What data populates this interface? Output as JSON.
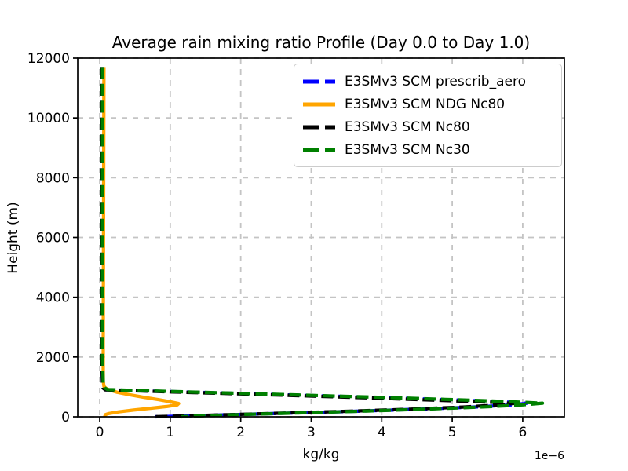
{
  "figure": {
    "title": "Average rain mixing ratio Profile (Day 0.0 to Day 1.0)",
    "xlabel": "kg/kg",
    "ylabel": "Height (m)",
    "x_offset_label": "1e−6"
  },
  "chart_data": {
    "type": "line",
    "title": "Average rain mixing ratio Profile (Day 0.0 to Day 1.0)",
    "xlabel": "kg/kg",
    "ylabel": "Height (m)",
    "x_unit_scale": "1e-6",
    "xlim": [
      -0.312,
      6.591
    ],
    "ylim": [
      0,
      12000
    ],
    "xticks": [
      0,
      1,
      2,
      3,
      4,
      5,
      6
    ],
    "yticks": [
      0,
      2000,
      4000,
      6000,
      8000,
      10000,
      12000
    ],
    "grid": true,
    "grid_color": "#c4c4c4",
    "legend_position": "upper right",
    "series": [
      {
        "name": "E3SMv3 SCM prescrib_aero",
        "color": "#0000ff",
        "linestyle": "dashed",
        "linewidth": 4.2,
        "points_x_1e-6_y_m": [
          [
            0.03,
            11700
          ],
          [
            0.03,
            2000
          ],
          [
            0.04,
            1100
          ],
          [
            0.05,
            960
          ],
          [
            0.09,
            905
          ],
          [
            0.7,
            862
          ],
          [
            1.4,
            818
          ],
          [
            2.1,
            772
          ],
          [
            2.8,
            726
          ],
          [
            3.5,
            678
          ],
          [
            4.2,
            628
          ],
          [
            4.85,
            578
          ],
          [
            5.4,
            532
          ],
          [
            5.8,
            492
          ],
          [
            6.05,
            452
          ],
          [
            5.85,
            400
          ],
          [
            5.35,
            330
          ],
          [
            4.6,
            260
          ],
          [
            3.6,
            185
          ],
          [
            2.4,
            105
          ],
          [
            1.3,
            35
          ],
          [
            0.78,
            0
          ]
        ]
      },
      {
        "name": "E3SMv3 SCM NDG Nc80",
        "color": "#ffa500",
        "linestyle": "solid",
        "linewidth": 4.2,
        "points_x_1e-6_y_m": [
          [
            0.06,
            11700
          ],
          [
            0.05,
            2500
          ],
          [
            0.05,
            1200
          ],
          [
            0.06,
            1020
          ],
          [
            0.09,
            950
          ],
          [
            0.14,
            895
          ],
          [
            0.25,
            820
          ],
          [
            0.42,
            740
          ],
          [
            0.62,
            655
          ],
          [
            0.83,
            575
          ],
          [
            1.0,
            505
          ],
          [
            1.12,
            445
          ],
          [
            1.1,
            400
          ],
          [
            0.95,
            345
          ],
          [
            0.72,
            285
          ],
          [
            0.48,
            225
          ],
          [
            0.27,
            165
          ],
          [
            0.13,
            110
          ],
          [
            0.08,
            70
          ],
          [
            0.07,
            0
          ]
        ]
      },
      {
        "name": "E3SMv3 SCM Nc80",
        "color": "#000000",
        "linestyle": "dashed",
        "linewidth": 4.2,
        "points_x_1e-6_y_m": [
          [
            0.03,
            11700
          ],
          [
            0.03,
            2000
          ],
          [
            0.04,
            1090
          ],
          [
            0.05,
            955
          ],
          [
            0.08,
            900
          ],
          [
            0.65,
            858
          ],
          [
            1.32,
            812
          ],
          [
            2.0,
            766
          ],
          [
            2.65,
            720
          ],
          [
            3.3,
            672
          ],
          [
            3.95,
            622
          ],
          [
            4.55,
            572
          ],
          [
            5.1,
            527
          ],
          [
            5.55,
            488
          ],
          [
            5.88,
            448
          ],
          [
            5.65,
            396
          ],
          [
            5.15,
            326
          ],
          [
            4.4,
            256
          ],
          [
            3.45,
            182
          ],
          [
            2.3,
            102
          ],
          [
            1.25,
            33
          ],
          [
            0.73,
            0
          ]
        ]
      },
      {
        "name": "E3SMv3 SCM Nc30",
        "color": "#008000",
        "linestyle": "dashed",
        "linewidth": 4.2,
        "points_x_1e-6_y_m": [
          [
            0.04,
            11700
          ],
          [
            0.04,
            2000
          ],
          [
            0.05,
            1100
          ],
          [
            0.07,
            965
          ],
          [
            0.11,
            910
          ],
          [
            0.75,
            865
          ],
          [
            1.45,
            820
          ],
          [
            2.15,
            775
          ],
          [
            2.85,
            728
          ],
          [
            3.55,
            680
          ],
          [
            4.25,
            632
          ],
          [
            4.9,
            582
          ],
          [
            5.45,
            537
          ],
          [
            5.9,
            497
          ],
          [
            6.28,
            456
          ],
          [
            6.0,
            400
          ],
          [
            5.5,
            335
          ],
          [
            4.75,
            268
          ],
          [
            3.8,
            195
          ],
          [
            2.6,
            115
          ],
          [
            1.55,
            45
          ],
          [
            1.15,
            0
          ]
        ]
      }
    ]
  }
}
